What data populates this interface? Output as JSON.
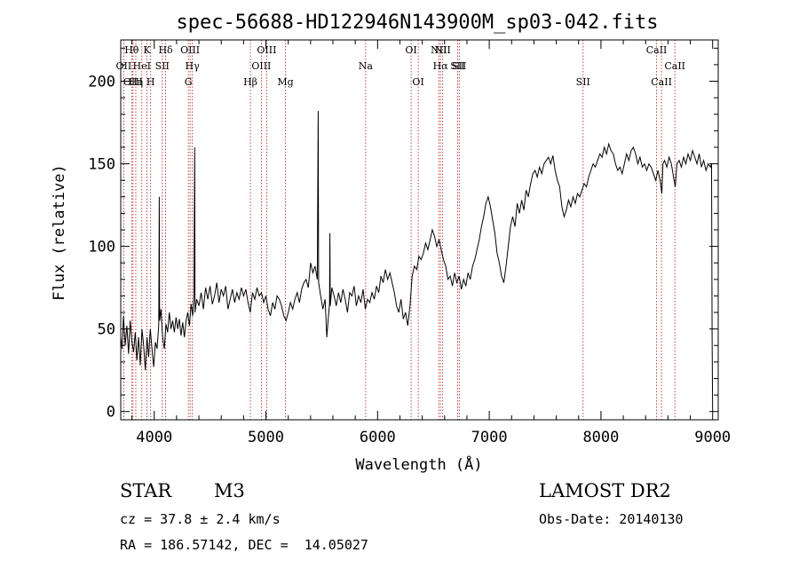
{
  "chart_data": {
    "type": "line",
    "title": "spec-56688-HD122946N143900M_sp03-042.fits",
    "xlabel": "Wavelength (Å)",
    "ylabel": "Flux (relative)",
    "xlim": [
      3700,
      9050
    ],
    "ylim": [
      -5,
      225
    ],
    "xticks": [
      4000,
      5000,
      6000,
      7000,
      8000,
      9000
    ],
    "yticks": [
      0,
      50,
      100,
      150,
      200
    ],
    "grid": false,
    "series": [
      {
        "values": [
          [
            3700,
            45
          ],
          [
            3712,
            38
          ],
          [
            3725,
            58
          ],
          [
            3740,
            40
          ],
          [
            3755,
            52
          ],
          [
            3770,
            35
          ],
          [
            3785,
            55
          ],
          [
            3800,
            42
          ],
          [
            3815,
            36
          ],
          [
            3830,
            48
          ],
          [
            3845,
            31
          ],
          [
            3860,
            45
          ],
          [
            3875,
            28
          ],
          [
            3890,
            50
          ],
          [
            3905,
            40
          ],
          [
            3920,
            25
          ],
          [
            3935,
            45
          ],
          [
            3950,
            33
          ],
          [
            3965,
            50
          ],
          [
            3980,
            38
          ],
          [
            3995,
            27
          ],
          [
            4010,
            42
          ],
          [
            4025,
            38
          ],
          [
            4040,
            52
          ],
          [
            4045,
            130
          ],
          [
            4048,
            55
          ],
          [
            4060,
            62
          ],
          [
            4075,
            45
          ],
          [
            4090,
            38
          ],
          [
            4105,
            53
          ],
          [
            4120,
            48
          ],
          [
            4135,
            60
          ],
          [
            4150,
            50
          ],
          [
            4165,
            55
          ],
          [
            4180,
            48
          ],
          [
            4195,
            57
          ],
          [
            4210,
            50
          ],
          [
            4225,
            56
          ],
          [
            4240,
            46
          ],
          [
            4255,
            54
          ],
          [
            4270,
            45
          ],
          [
            4285,
            55
          ],
          [
            4300,
            60
          ],
          [
            4315,
            52
          ],
          [
            4330,
            65
          ],
          [
            4345,
            58
          ],
          [
            4355,
            70
          ],
          [
            4362,
            160
          ],
          [
            4365,
            60
          ],
          [
            4380,
            68
          ],
          [
            4400,
            64
          ],
          [
            4420,
            72
          ],
          [
            4440,
            62
          ],
          [
            4460,
            75
          ],
          [
            4480,
            68
          ],
          [
            4500,
            76
          ],
          [
            4520,
            65
          ],
          [
            4540,
            70
          ],
          [
            4560,
            78
          ],
          [
            4580,
            66
          ],
          [
            4600,
            74
          ],
          [
            4620,
            70
          ],
          [
            4640,
            76
          ],
          [
            4660,
            62
          ],
          [
            4680,
            68
          ],
          [
            4700,
            74
          ],
          [
            4720,
            66
          ],
          [
            4740,
            72
          ],
          [
            4760,
            68
          ],
          [
            4780,
            75
          ],
          [
            4800,
            70
          ],
          [
            4820,
            74
          ],
          [
            4840,
            66
          ],
          [
            4860,
            60
          ],
          [
            4880,
            72
          ],
          [
            4900,
            68
          ],
          [
            4920,
            75
          ],
          [
            4940,
            70
          ],
          [
            4960,
            72
          ],
          [
            4980,
            66
          ],
          [
            5000,
            70
          ],
          [
            5020,
            62
          ],
          [
            5040,
            58
          ],
          [
            5060,
            66
          ],
          [
            5080,
            62
          ],
          [
            5100,
            70
          ],
          [
            5120,
            68
          ],
          [
            5140,
            64
          ],
          [
            5160,
            58
          ],
          [
            5180,
            55
          ],
          [
            5200,
            60
          ],
          [
            5220,
            66
          ],
          [
            5240,
            62
          ],
          [
            5260,
            68
          ],
          [
            5280,
            72
          ],
          [
            5300,
            66
          ],
          [
            5320,
            74
          ],
          [
            5340,
            78
          ],
          [
            5360,
            80
          ],
          [
            5380,
            75
          ],
          [
            5400,
            90
          ],
          [
            5420,
            84
          ],
          [
            5440,
            88
          ],
          [
            5460,
            80
          ],
          [
            5468,
            182
          ],
          [
            5472,
            78
          ],
          [
            5490,
            70
          ],
          [
            5510,
            62
          ],
          [
            5530,
            68
          ],
          [
            5545,
            45
          ],
          [
            5560,
            58
          ],
          [
            5570,
            65
          ],
          [
            5573,
            108
          ],
          [
            5576,
            64
          ],
          [
            5590,
            75
          ],
          [
            5610,
            70
          ],
          [
            5630,
            64
          ],
          [
            5650,
            72
          ],
          [
            5670,
            66
          ],
          [
            5690,
            74
          ],
          [
            5710,
            68
          ],
          [
            5730,
            60
          ],
          [
            5750,
            72
          ],
          [
            5770,
            70
          ],
          [
            5790,
            76
          ],
          [
            5810,
            64
          ],
          [
            5830,
            70
          ],
          [
            5850,
            66
          ],
          [
            5870,
            74
          ],
          [
            5890,
            62
          ],
          [
            5910,
            68
          ],
          [
            5930,
            66
          ],
          [
            5950,
            72
          ],
          [
            5970,
            68
          ],
          [
            5990,
            76
          ],
          [
            6010,
            72
          ],
          [
            6030,
            82
          ],
          [
            6050,
            78
          ],
          [
            6070,
            86
          ],
          [
            6090,
            80
          ],
          [
            6110,
            84
          ],
          [
            6130,
            78
          ],
          [
            6150,
            72
          ],
          [
            6170,
            64
          ],
          [
            6190,
            60
          ],
          [
            6210,
            68
          ],
          [
            6230,
            56
          ],
          [
            6250,
            60
          ],
          [
            6270,
            52
          ],
          [
            6290,
            64
          ],
          [
            6310,
            82
          ],
          [
            6330,
            88
          ],
          [
            6350,
            86
          ],
          [
            6370,
            94
          ],
          [
            6390,
            92
          ],
          [
            6410,
            96
          ],
          [
            6430,
            102
          ],
          [
            6450,
            98
          ],
          [
            6470,
            104
          ],
          [
            6490,
            110
          ],
          [
            6510,
            106
          ],
          [
            6530,
            100
          ],
          [
            6550,
            104
          ],
          [
            6570,
            98
          ],
          [
            6590,
            92
          ],
          [
            6610,
            88
          ],
          [
            6630,
            80
          ],
          [
            6650,
            82
          ],
          [
            6670,
            76
          ],
          [
            6690,
            84
          ],
          [
            6710,
            78
          ],
          [
            6730,
            82
          ],
          [
            6750,
            74
          ],
          [
            6770,
            80
          ],
          [
            6790,
            76
          ],
          [
            6810,
            84
          ],
          [
            6830,
            80
          ],
          [
            6850,
            88
          ],
          [
            6870,
            92
          ],
          [
            6890,
            98
          ],
          [
            6910,
            104
          ],
          [
            6930,
            112
          ],
          [
            6950,
            118
          ],
          [
            6970,
            126
          ],
          [
            6990,
            130
          ],
          [
            7010,
            124
          ],
          [
            7030,
            116
          ],
          [
            7050,
            108
          ],
          [
            7070,
            96
          ],
          [
            7090,
            90
          ],
          [
            7110,
            82
          ],
          [
            7130,
            78
          ],
          [
            7150,
            88
          ],
          [
            7170,
            100
          ],
          [
            7190,
            112
          ],
          [
            7210,
            118
          ],
          [
            7230,
            112
          ],
          [
            7250,
            126
          ],
          [
            7270,
            120
          ],
          [
            7290,
            128
          ],
          [
            7310,
            122
          ],
          [
            7330,
            134
          ],
          [
            7350,
            130
          ],
          [
            7370,
            138
          ],
          [
            7390,
            144
          ],
          [
            7410,
            146
          ],
          [
            7430,
            142
          ],
          [
            7450,
            148
          ],
          [
            7470,
            144
          ],
          [
            7490,
            150
          ],
          [
            7510,
            152
          ],
          [
            7530,
            154
          ],
          [
            7550,
            150
          ],
          [
            7570,
            155
          ],
          [
            7590,
            146
          ],
          [
            7610,
            140
          ],
          [
            7630,
            136
          ],
          [
            7650,
            124
          ],
          [
            7670,
            118
          ],
          [
            7690,
            122
          ],
          [
            7710,
            128
          ],
          [
            7730,
            124
          ],
          [
            7750,
            130
          ],
          [
            7770,
            126
          ],
          [
            7790,
            132
          ],
          [
            7810,
            130
          ],
          [
            7830,
            134
          ],
          [
            7850,
            138
          ],
          [
            7870,
            136
          ],
          [
            7890,
            142
          ],
          [
            7910,
            146
          ],
          [
            7930,
            150
          ],
          [
            7950,
            148
          ],
          [
            7970,
            152
          ],
          [
            7990,
            156
          ],
          [
            8010,
            154
          ],
          [
            8030,
            160
          ],
          [
            8050,
            156
          ],
          [
            8070,
            162
          ],
          [
            8090,
            158
          ],
          [
            8110,
            156
          ],
          [
            8130,
            150
          ],
          [
            8150,
            146
          ],
          [
            8170,
            148
          ],
          [
            8190,
            144
          ],
          [
            8210,
            150
          ],
          [
            8230,
            156
          ],
          [
            8250,
            152
          ],
          [
            8270,
            158
          ],
          [
            8290,
            160
          ],
          [
            8310,
            156
          ],
          [
            8330,
            150
          ],
          [
            8350,
            154
          ],
          [
            8370,
            148
          ],
          [
            8390,
            150
          ],
          [
            8410,
            146
          ],
          [
            8430,
            150
          ],
          [
            8450,
            148
          ],
          [
            8470,
            144
          ],
          [
            8490,
            140
          ],
          [
            8510,
            146
          ],
          [
            8530,
            140
          ],
          [
            8545,
            132
          ],
          [
            8555,
            150
          ],
          [
            8570,
            152
          ],
          [
            8590,
            148
          ],
          [
            8610,
            154
          ],
          [
            8630,
            150
          ],
          [
            8650,
            142
          ],
          [
            8665,
            136
          ],
          [
            8680,
            150
          ],
          [
            8700,
            152
          ],
          [
            8720,
            148
          ],
          [
            8740,
            154
          ],
          [
            8760,
            150
          ],
          [
            8780,
            156
          ],
          [
            8800,
            152
          ],
          [
            8820,
            158
          ],
          [
            8840,
            154
          ],
          [
            8860,
            150
          ],
          [
            8880,
            156
          ],
          [
            8900,
            148
          ],
          [
            8920,
            152
          ],
          [
            8940,
            146
          ],
          [
            8960,
            150
          ],
          [
            8980,
            148
          ],
          [
            8990,
            150
          ],
          [
            8995,
            46
          ],
          [
            9000,
            0
          ]
        ]
      }
    ],
    "lines": [
      {
        "label": "OII",
        "x": 3727,
        "row": 1
      },
      {
        "label": "Hθ",
        "x": 3798,
        "row": 0
      },
      {
        "label": "OIII",
        "x": 3810,
        "row": 2
      },
      {
        "label": "Hη",
        "x": 3835,
        "row": 2
      },
      {
        "label": "HeI",
        "x": 3889,
        "row": 1
      },
      {
        "label": "K",
        "x": 3934,
        "row": 0
      },
      {
        "label": "H",
        "x": 3968,
        "row": 2
      },
      {
        "label": "SII",
        "x": 4072,
        "row": 1
      },
      {
        "label": "Hδ",
        "x": 4102,
        "row": 0
      },
      {
        "label": "G",
        "x": 4305,
        "row": 2
      },
      {
        "label": "OIII",
        "x": 4321,
        "row": 0
      },
      {
        "label": "Hγ",
        "x": 4341,
        "row": 1
      },
      {
        "label": "Hβ",
        "x": 4861,
        "row": 2
      },
      {
        "label": "OIII",
        "x": 4959,
        "row": 1
      },
      {
        "label": "OIII",
        "x": 5007,
        "row": 0
      },
      {
        "label": "Mg",
        "x": 5175,
        "row": 2
      },
      {
        "label": "Na",
        "x": 5893,
        "row": 1
      },
      {
        "label": "OI",
        "x": 6300,
        "row": 0
      },
      {
        "label": "OI",
        "x": 6364,
        "row": 2
      },
      {
        "label": "NII",
        "x": 6548,
        "row": 0
      },
      {
        "label": "Hα",
        "x": 6563,
        "row": 1
      },
      {
        "label": "NII",
        "x": 6583,
        "row": 0
      },
      {
        "label": "SII",
        "x": 6716,
        "row": 1
      },
      {
        "label": "SII",
        "x": 6731,
        "row": 1
      },
      {
        "label": "SII",
        "x": 7840,
        "row": 2
      },
      {
        "label": "CaII",
        "x": 8498,
        "row": 0
      },
      {
        "label": "CaII",
        "x": 8542,
        "row": 2
      },
      {
        "label": "CaII",
        "x": 8662,
        "row": 1
      }
    ]
  },
  "info": {
    "class_label": "STAR",
    "subclass_label": "M3",
    "survey": "LAMOST DR2",
    "cz": "cz = 37.8 ± 2.4 km/s",
    "obs_date": "Obs-Date: 20140130",
    "coords": "RA = 186.57142, DEC =  14.05027"
  }
}
